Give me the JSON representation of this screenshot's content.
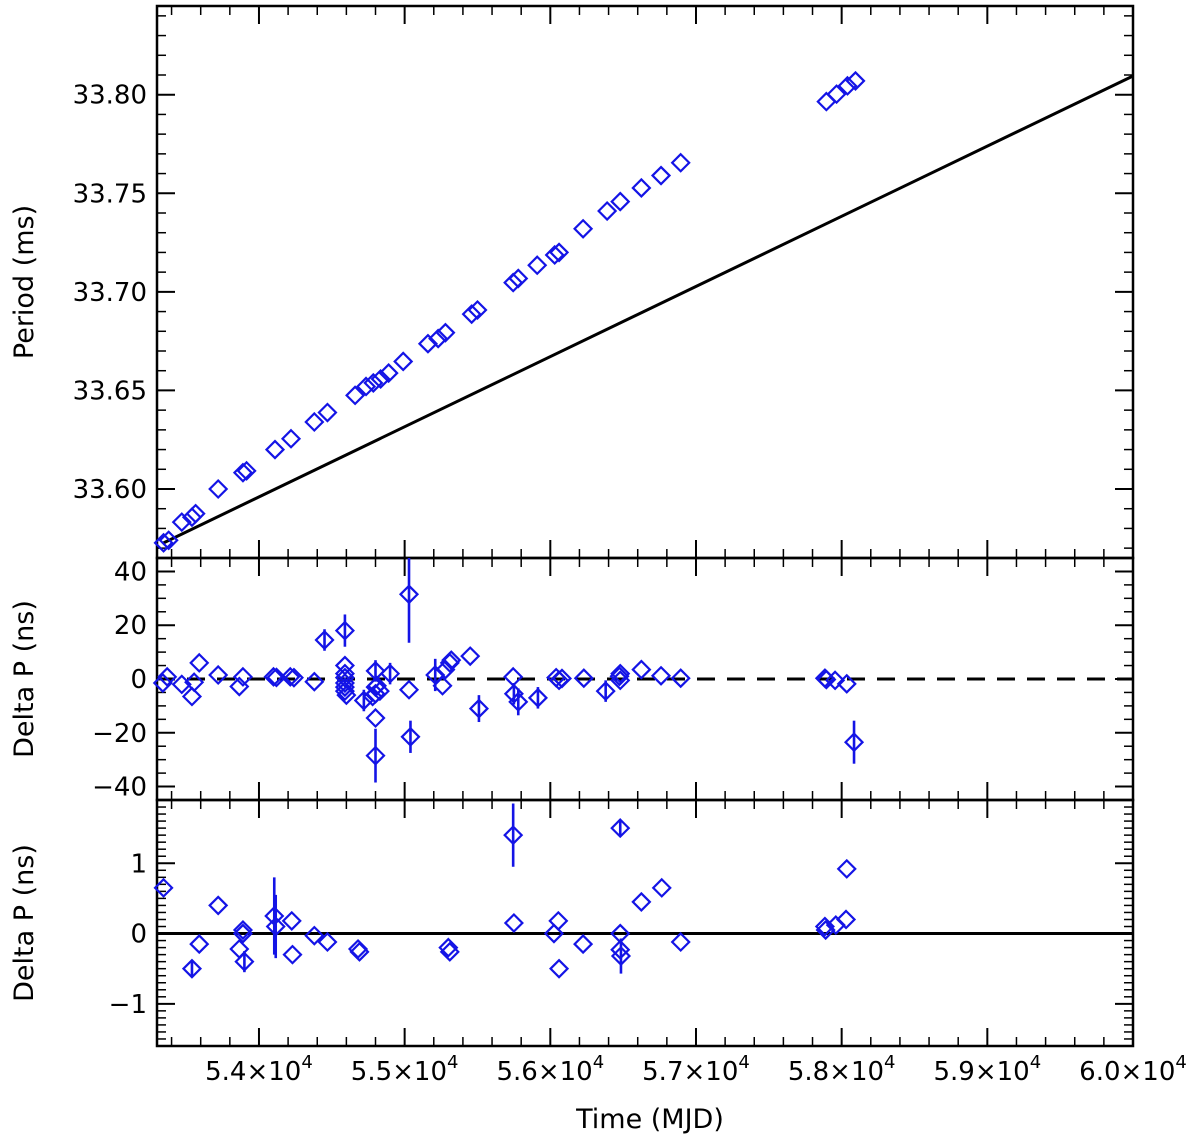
{
  "figure": {
    "xlabel": "Time (MJD)",
    "marker_color": "#1414e6",
    "line_color": "#000000"
  },
  "chart_data": [
    {
      "type": "scatter",
      "panel": "top",
      "ylabel": "Period (ms)",
      "xlim": [
        53300,
        60000
      ],
      "ylim": [
        33.565,
        33.845
      ],
      "y_ticks": [
        "33.60",
        "33.65",
        "33.70",
        "33.75",
        "33.80"
      ],
      "y_tick_values": [
        33.6,
        33.65,
        33.7,
        33.75,
        33.8
      ],
      "y_minor_step": 0.01,
      "fit_line": {
        "x": [
          53340,
          60000
        ],
        "y": [
          33.5725,
          33.8095
        ]
      },
      "points": [
        [
          53345,
          33.5727
        ],
        [
          53380,
          33.574
        ],
        [
          53470,
          33.5832
        ],
        [
          53540,
          33.5857
        ],
        [
          53565,
          33.5875
        ],
        [
          53720,
          33.6
        ],
        [
          53890,
          33.6083
        ],
        [
          53915,
          33.6092
        ],
        [
          54110,
          33.62
        ],
        [
          54220,
          33.6255
        ],
        [
          54380,
          33.634
        ],
        [
          54470,
          33.6388
        ],
        [
          54660,
          33.6475
        ],
        [
          54735,
          33.652
        ],
        [
          54785,
          33.6538
        ],
        [
          54835,
          33.6558
        ],
        [
          54890,
          33.6588
        ],
        [
          54990,
          33.6647
        ],
        [
          55160,
          33.6737
        ],
        [
          55230,
          33.6763
        ],
        [
          55280,
          33.6793
        ],
        [
          55460,
          33.6887
        ],
        [
          55500,
          33.6908
        ],
        [
          55745,
          33.7047
        ],
        [
          55780,
          33.7068
        ],
        [
          55910,
          33.7135
        ],
        [
          56030,
          33.7187
        ],
        [
          56060,
          33.72
        ],
        [
          56225,
          33.732
        ],
        [
          56390,
          33.741
        ],
        [
          56480,
          33.7458
        ],
        [
          56625,
          33.7527
        ],
        [
          56760,
          33.759
        ],
        [
          56895,
          33.7655
        ],
        [
          57895,
          33.7965
        ],
        [
          57965,
          33.8003
        ],
        [
          58040,
          33.8045
        ],
        [
          58095,
          33.807
        ]
      ]
    },
    {
      "type": "scatter",
      "panel": "middle",
      "ylabel": "Delta P (ns)",
      "xlim": [
        53300,
        60000
      ],
      "ylim": [
        -45,
        45
      ],
      "y_ticks": [
        "40",
        "20",
        "0",
        "−20",
        "−40"
      ],
      "y_tick_values": [
        40,
        20,
        0,
        -20,
        -40
      ],
      "y_minor_step": 5,
      "reference_line": {
        "y": 0,
        "style": "dashed"
      },
      "points": [
        [
          53340,
          -1.5,
          0
        ],
        [
          53370,
          0.8,
          0
        ],
        [
          53470,
          -2.0,
          0
        ],
        [
          53540,
          -6.5,
          0
        ],
        [
          53555,
          -1.2,
          0
        ],
        [
          53590,
          6.0,
          0
        ],
        [
          53720,
          1.5,
          0
        ],
        [
          53865,
          -2.8,
          0
        ],
        [
          53890,
          0.8,
          0
        ],
        [
          54100,
          0.8,
          0
        ],
        [
          54120,
          0.6,
          0
        ],
        [
          54215,
          0.8,
          0
        ],
        [
          54240,
          0.5,
          0
        ],
        [
          54380,
          -1.0,
          0
        ],
        [
          54450,
          14.5,
          4
        ],
        [
          54590,
          18.0,
          6
        ],
        [
          54590,
          5.0,
          0
        ],
        [
          54590,
          2.0,
          0
        ],
        [
          54590,
          0.5,
          0
        ],
        [
          54590,
          -1.5,
          0
        ],
        [
          54590,
          -3.0,
          0
        ],
        [
          54590,
          -4.5,
          0
        ],
        [
          54600,
          -6.0,
          0
        ],
        [
          54720,
          -8.0,
          4
        ],
        [
          54780,
          -6.5,
          0
        ],
        [
          54800,
          3.0,
          4
        ],
        [
          54800,
          -3.0,
          0
        ],
        [
          54800,
          -5.5,
          0
        ],
        [
          54800,
          -14.5,
          0
        ],
        [
          54800,
          -28.5,
          10
        ],
        [
          54810,
          -2.5,
          0
        ],
        [
          54830,
          -4.5,
          0
        ],
        [
          54900,
          2.0,
          4
        ],
        [
          55030,
          31.5,
          18
        ],
        [
          55030,
          -4.0,
          0
        ],
        [
          55040,
          -21.5,
          6
        ],
        [
          55210,
          1.5,
          6
        ],
        [
          55260,
          -2.5,
          0
        ],
        [
          55280,
          3.5,
          0
        ],
        [
          55310,
          6.0,
          0
        ],
        [
          55320,
          7.0,
          0
        ],
        [
          55450,
          8.5,
          0
        ],
        [
          55510,
          -11.0,
          5
        ],
        [
          55745,
          0.8,
          0
        ],
        [
          55750,
          -5.5,
          4
        ],
        [
          55780,
          -8.5,
          5
        ],
        [
          55915,
          -7.0,
          4
        ],
        [
          56040,
          0.5,
          0
        ],
        [
          56060,
          -0.5,
          0
        ],
        [
          56080,
          0.2,
          0
        ],
        [
          56230,
          0.3,
          0
        ],
        [
          56380,
          -4.5,
          4
        ],
        [
          56475,
          1.0,
          0
        ],
        [
          56480,
          2.0,
          0
        ],
        [
          56480,
          -0.5,
          0
        ],
        [
          56625,
          3.5,
          0
        ],
        [
          56760,
          1.2,
          0
        ],
        [
          56895,
          0.3,
          0
        ],
        [
          57885,
          0.3,
          0
        ],
        [
          57895,
          -0.2,
          0
        ],
        [
          57955,
          -0.5,
          0
        ],
        [
          58035,
          -1.8,
          0
        ],
        [
          58085,
          -23.5,
          8
        ]
      ]
    },
    {
      "type": "scatter",
      "panel": "bottom",
      "ylabel": "Delta P (ns)",
      "xlabel": "Time (MJD)",
      "xlim": [
        53300,
        60000
      ],
      "ylim": [
        -1.6,
        1.9
      ],
      "x_ticks": [
        54000,
        55000,
        56000,
        57000,
        58000,
        59000,
        60000
      ],
      "x_tick_mantissas": [
        "5.4",
        "5.5",
        "5.6",
        "5.7",
        "5.8",
        "5.9",
        "6.0"
      ],
      "x_tick_exponent": "4",
      "x_minor_step": 200,
      "y_ticks": [
        "1",
        "0",
        "−1"
      ],
      "y_tick_values": [
        1,
        0,
        -1
      ],
      "y_minor_step": 0.1,
      "reference_line": {
        "y": 0,
        "style": "solid"
      },
      "points": [
        [
          53345,
          0.65,
          0
        ],
        [
          53540,
          -0.5,
          0.12
        ],
        [
          53590,
          -0.15,
          0
        ],
        [
          53720,
          0.4,
          0
        ],
        [
          53865,
          -0.22,
          0
        ],
        [
          53890,
          0.05,
          0
        ],
        [
          53890,
          0.0,
          0
        ],
        [
          53900,
          -0.4,
          0.15
        ],
        [
          54105,
          0.25,
          0.55
        ],
        [
          54115,
          0.1,
          0.45
        ],
        [
          54225,
          0.18,
          0
        ],
        [
          54230,
          -0.3,
          0
        ],
        [
          54380,
          -0.03,
          0
        ],
        [
          54470,
          -0.12,
          0
        ],
        [
          54680,
          -0.22,
          0
        ],
        [
          54690,
          -0.26,
          0
        ],
        [
          55300,
          -0.2,
          0
        ],
        [
          55310,
          -0.26,
          0
        ],
        [
          55745,
          1.4,
          0.45
        ],
        [
          55750,
          0.15,
          0
        ],
        [
          56025,
          0.0,
          0
        ],
        [
          56055,
          0.18,
          0
        ],
        [
          56060,
          -0.5,
          0
        ],
        [
          56225,
          -0.15,
          0
        ],
        [
          56480,
          1.5,
          0.12
        ],
        [
          56480,
          0.0,
          0
        ],
        [
          56480,
          -0.23,
          0
        ],
        [
          56485,
          -0.32,
          0.25
        ],
        [
          56625,
          0.45,
          0
        ],
        [
          56765,
          0.65,
          0
        ],
        [
          56895,
          -0.12,
          0
        ],
        [
          57885,
          0.1,
          0
        ],
        [
          57890,
          0.05,
          0
        ],
        [
          57960,
          0.12,
          0
        ],
        [
          58030,
          0.2,
          0
        ],
        [
          58035,
          0.92,
          0
        ]
      ]
    }
  ]
}
